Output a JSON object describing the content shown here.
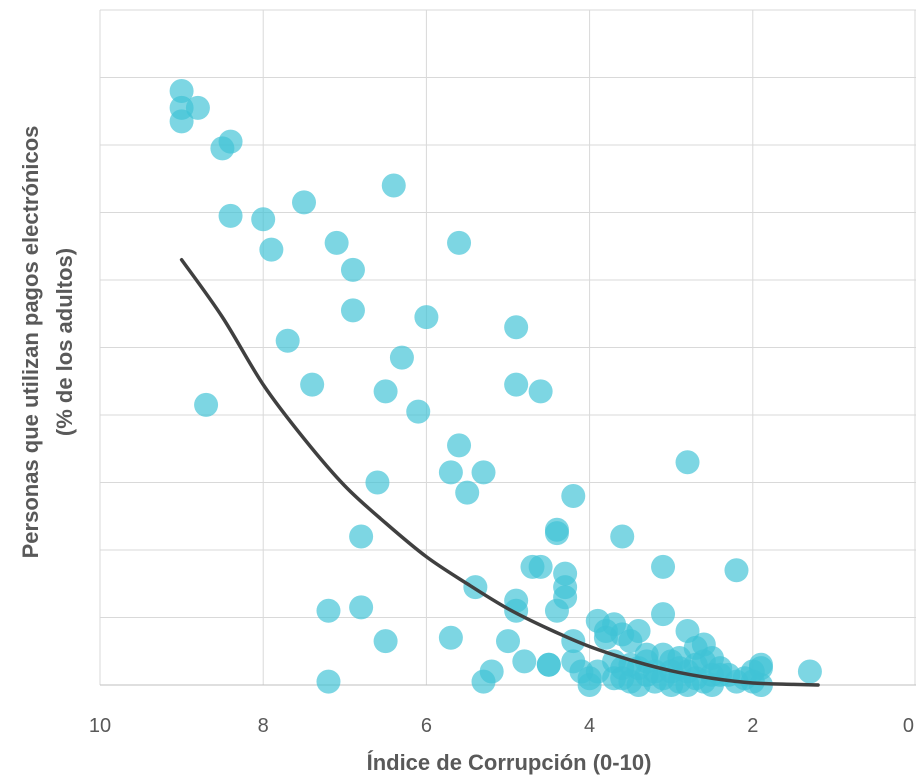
{
  "chart_data": {
    "type": "scatter",
    "xlabel": "Índice de Corrupción  (0-10)",
    "ylabel": [
      "Personas que utilizan pagos electrónicos",
      "(% de los adultos)"
    ],
    "xlim": [
      10,
      0
    ],
    "x_reversed": true,
    "xticks": [
      "10",
      "8",
      "6",
      "4",
      "2",
      "0"
    ],
    "xtick_values": [
      10,
      8,
      6,
      4,
      2,
      0
    ],
    "ylim": [
      0,
      100
    ],
    "ytick_values": [
      0,
      10,
      20,
      30,
      40,
      50,
      60,
      70,
      80,
      90,
      100
    ],
    "ytick_labels_visible": false,
    "grid": true,
    "colors": {
      "points": "#3fc3d6",
      "trend": "#404040",
      "grid": "#d9d9d9",
      "text": "#595959"
    },
    "series": [
      {
        "kind": "points",
        "values": [
          [
            9.0,
            88
          ],
          [
            9.0,
            85.5
          ],
          [
            8.8,
            85.5
          ],
          [
            9.0,
            83.5
          ],
          [
            8.4,
            80.5
          ],
          [
            8.5,
            79.5
          ],
          [
            6.4,
            74
          ],
          [
            7.5,
            71.5
          ],
          [
            8.4,
            69.5
          ],
          [
            8.0,
            69
          ],
          [
            7.1,
            65.5
          ],
          [
            5.6,
            65.5
          ],
          [
            7.9,
            64.5
          ],
          [
            6.9,
            61.5
          ],
          [
            6.9,
            55.5
          ],
          [
            6.0,
            54.5
          ],
          [
            4.9,
            53
          ],
          [
            7.7,
            51
          ],
          [
            6.3,
            48.5
          ],
          [
            7.4,
            44.5
          ],
          [
            4.9,
            44.5
          ],
          [
            6.5,
            43.5
          ],
          [
            4.6,
            43.5
          ],
          [
            8.7,
            41.5
          ],
          [
            6.1,
            40.5
          ],
          [
            5.6,
            35.5
          ],
          [
            5.7,
            31.5
          ],
          [
            5.3,
            31.5
          ],
          [
            2.8,
            33
          ],
          [
            6.6,
            30
          ],
          [
            5.5,
            28.5
          ],
          [
            4.2,
            28
          ],
          [
            4.4,
            23
          ],
          [
            4.4,
            22.5
          ],
          [
            3.6,
            22
          ],
          [
            6.8,
            22
          ],
          [
            3.1,
            17.5
          ],
          [
            4.7,
            17.5
          ],
          [
            4.6,
            17.5
          ],
          [
            4.3,
            16.5
          ],
          [
            2.2,
            17
          ],
          [
            5.4,
            14.5
          ],
          [
            4.3,
            14.5
          ],
          [
            4.3,
            13
          ],
          [
            4.9,
            12.5
          ],
          [
            7.2,
            11
          ],
          [
            6.8,
            11.5
          ],
          [
            4.4,
            11
          ],
          [
            4.9,
            11
          ],
          [
            3.1,
            10.5
          ],
          [
            3.9,
            9.5
          ],
          [
            3.7,
            9
          ],
          [
            3.8,
            8
          ],
          [
            3.6,
            7.5
          ],
          [
            3.4,
            8
          ],
          [
            2.8,
            8
          ],
          [
            3.8,
            7
          ],
          [
            3.5,
            6.5
          ],
          [
            5.7,
            7
          ],
          [
            6.5,
            6.5
          ],
          [
            5.0,
            6.5
          ],
          [
            4.2,
            6.5
          ],
          [
            2.6,
            6
          ],
          [
            2.7,
            5.5
          ],
          [
            3.3,
            4.5
          ],
          [
            3.1,
            4.5
          ],
          [
            2.9,
            4
          ],
          [
            2.5,
            4
          ],
          [
            4.5,
            3
          ],
          [
            4.8,
            3.5
          ],
          [
            4.2,
            3.5
          ],
          [
            3.7,
            3.5
          ],
          [
            3.5,
            3
          ],
          [
            3.0,
            3.5
          ],
          [
            2.7,
            3
          ],
          [
            2.6,
            3.5
          ],
          [
            1.9,
            3
          ],
          [
            1.3,
            2
          ],
          [
            5.2,
            2
          ],
          [
            4.1,
            2
          ],
          [
            3.9,
            2
          ],
          [
            3.6,
            2.5
          ],
          [
            3.4,
            2.5
          ],
          [
            3.2,
            2
          ],
          [
            3.0,
            2
          ],
          [
            2.8,
            2
          ],
          [
            2.5,
            1.5
          ],
          [
            2.4,
            2.5
          ],
          [
            2.3,
            1.5
          ],
          [
            2.0,
            2
          ],
          [
            1.9,
            2.5
          ],
          [
            4.5,
            3
          ],
          [
            4.0,
            1
          ],
          [
            3.7,
            1
          ],
          [
            3.3,
            1.5
          ],
          [
            3.1,
            1
          ],
          [
            2.7,
            1
          ],
          [
            2.4,
            1.5
          ],
          [
            2.1,
            1
          ],
          [
            3.5,
            0.5
          ],
          [
            3.2,
            0.5
          ],
          [
            2.8,
            0
          ],
          [
            2.6,
            0.5
          ],
          [
            2.2,
            0.5
          ],
          [
            1.9,
            0
          ],
          [
            4.0,
            0
          ],
          [
            3.4,
            0
          ],
          [
            2.9,
            0.5
          ],
          [
            7.2,
            0.5
          ],
          [
            5.3,
            0.5
          ],
          [
            2.5,
            0
          ],
          [
            3.0,
            0
          ],
          [
            2.0,
            0.5
          ],
          [
            3.6,
            1
          ],
          [
            3.3,
            3.5
          ],
          [
            2.9,
            2.5
          ]
        ]
      },
      {
        "kind": "trend",
        "values": [
          [
            9.0,
            63
          ],
          [
            8.5,
            54.5
          ],
          [
            8.0,
            44.5
          ],
          [
            7.5,
            36.5
          ],
          [
            7.0,
            29.5
          ],
          [
            6.5,
            24
          ],
          [
            6.0,
            19
          ],
          [
            5.5,
            15
          ],
          [
            5.0,
            11.3
          ],
          [
            4.5,
            8.3
          ],
          [
            4.0,
            5.7
          ],
          [
            3.5,
            3.7
          ],
          [
            3.0,
            2.1
          ],
          [
            2.5,
            1.0
          ],
          [
            2.0,
            0.3
          ],
          [
            1.5,
            0.1
          ],
          [
            1.2,
            0
          ]
        ]
      }
    ]
  }
}
